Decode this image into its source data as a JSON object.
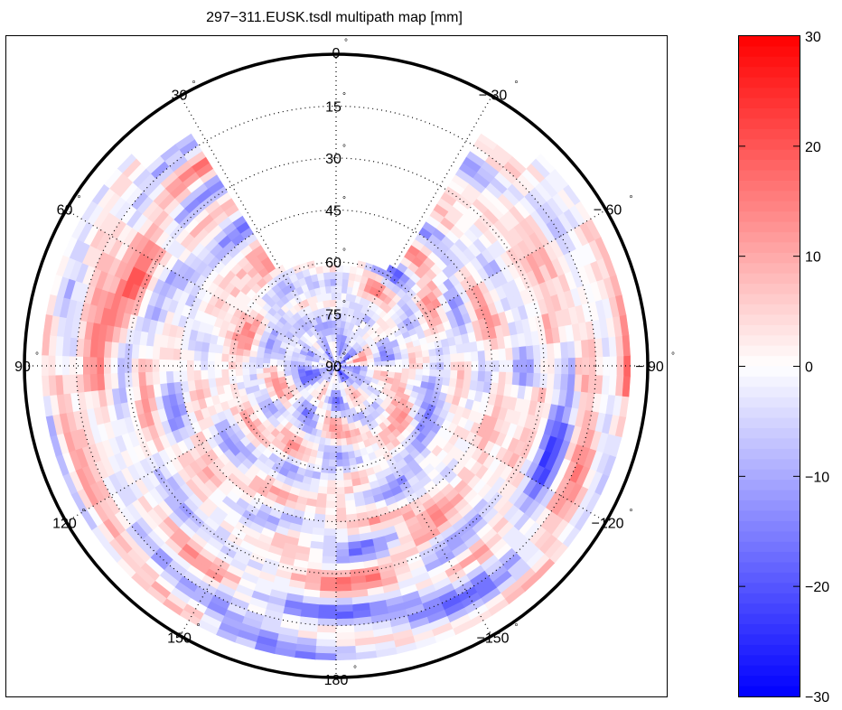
{
  "chart_data": {
    "type": "heatmap",
    "subtype": "polar-skyplot",
    "title": "297−311.EUSK.tsdl multipath map [mm]",
    "units": "mm",
    "azimuth_ticks": [
      {
        "value": 0,
        "label": "0"
      },
      {
        "value": -30,
        "label": "− 30"
      },
      {
        "value": -60,
        "label": "− 60"
      },
      {
        "value": -90,
        "label": "− 90"
      },
      {
        "value": -120,
        "label": "−120"
      },
      {
        "value": -150,
        "label": "−150"
      },
      {
        "value": 180,
        "label": "180"
      },
      {
        "value": 150,
        "label": "150"
      },
      {
        "value": 120,
        "label": "120"
      },
      {
        "value": 90,
        "label": "90"
      },
      {
        "value": 60,
        "label": "60"
      },
      {
        "value": 30,
        "label": "30"
      }
    ],
    "elevation_ticks": [
      {
        "value": 0,
        "label": "0"
      },
      {
        "value": 15,
        "label": "15"
      },
      {
        "value": 30,
        "label": "30"
      },
      {
        "value": 45,
        "label": "45"
      },
      {
        "value": 60,
        "label": "60"
      },
      {
        "value": 75,
        "label": "75"
      },
      {
        "value": 90,
        "label": "90"
      }
    ],
    "azimuth_direction": "counterclockwise, 0 at top",
    "elevation_range": [
      0,
      90
    ],
    "data_elevation_min": 5,
    "grid": true,
    "grid_style": "dotted",
    "no_data_region": {
      "description": "northern sector without observations",
      "azimuth_range": [
        -33,
        33
      ],
      "elevation_range": [
        5,
        62
      ]
    },
    "colorbar": {
      "min": -30,
      "max": 30,
      "ticks": [
        30,
        20,
        10,
        0,
        -10,
        -20,
        -30
      ],
      "tick_labels": [
        "30",
        "20",
        "10",
        "0",
        "−10",
        "−20",
        "−30"
      ],
      "colormap": "blue-white-red",
      "levels": 64,
      "low_color": "#0000ff",
      "mid_color": "#ffffff",
      "high_color": "#ff0000",
      "placement": "right"
    },
    "features": [
      {
        "region": "zenith (el 75-90)",
        "tendency": "negative",
        "approx_value": -10
      },
      {
        "region": "az 60-90, low elevation",
        "tendency": "mixed, strong positive patches",
        "approx_value": 15
      },
      {
        "region": "az -60 to -90, low elevation",
        "tendency": "positive",
        "approx_value": 12
      },
      {
        "region": "az -90, el ~30",
        "tendency": "negative",
        "approx_value": -15
      },
      {
        "region": "az 150 to -150, low elevation",
        "tendency": "negative bands",
        "approx_value": -12
      },
      {
        "region": "az 150-180, el 40-60",
        "tendency": "positive",
        "approx_value": 8
      }
    ]
  }
}
